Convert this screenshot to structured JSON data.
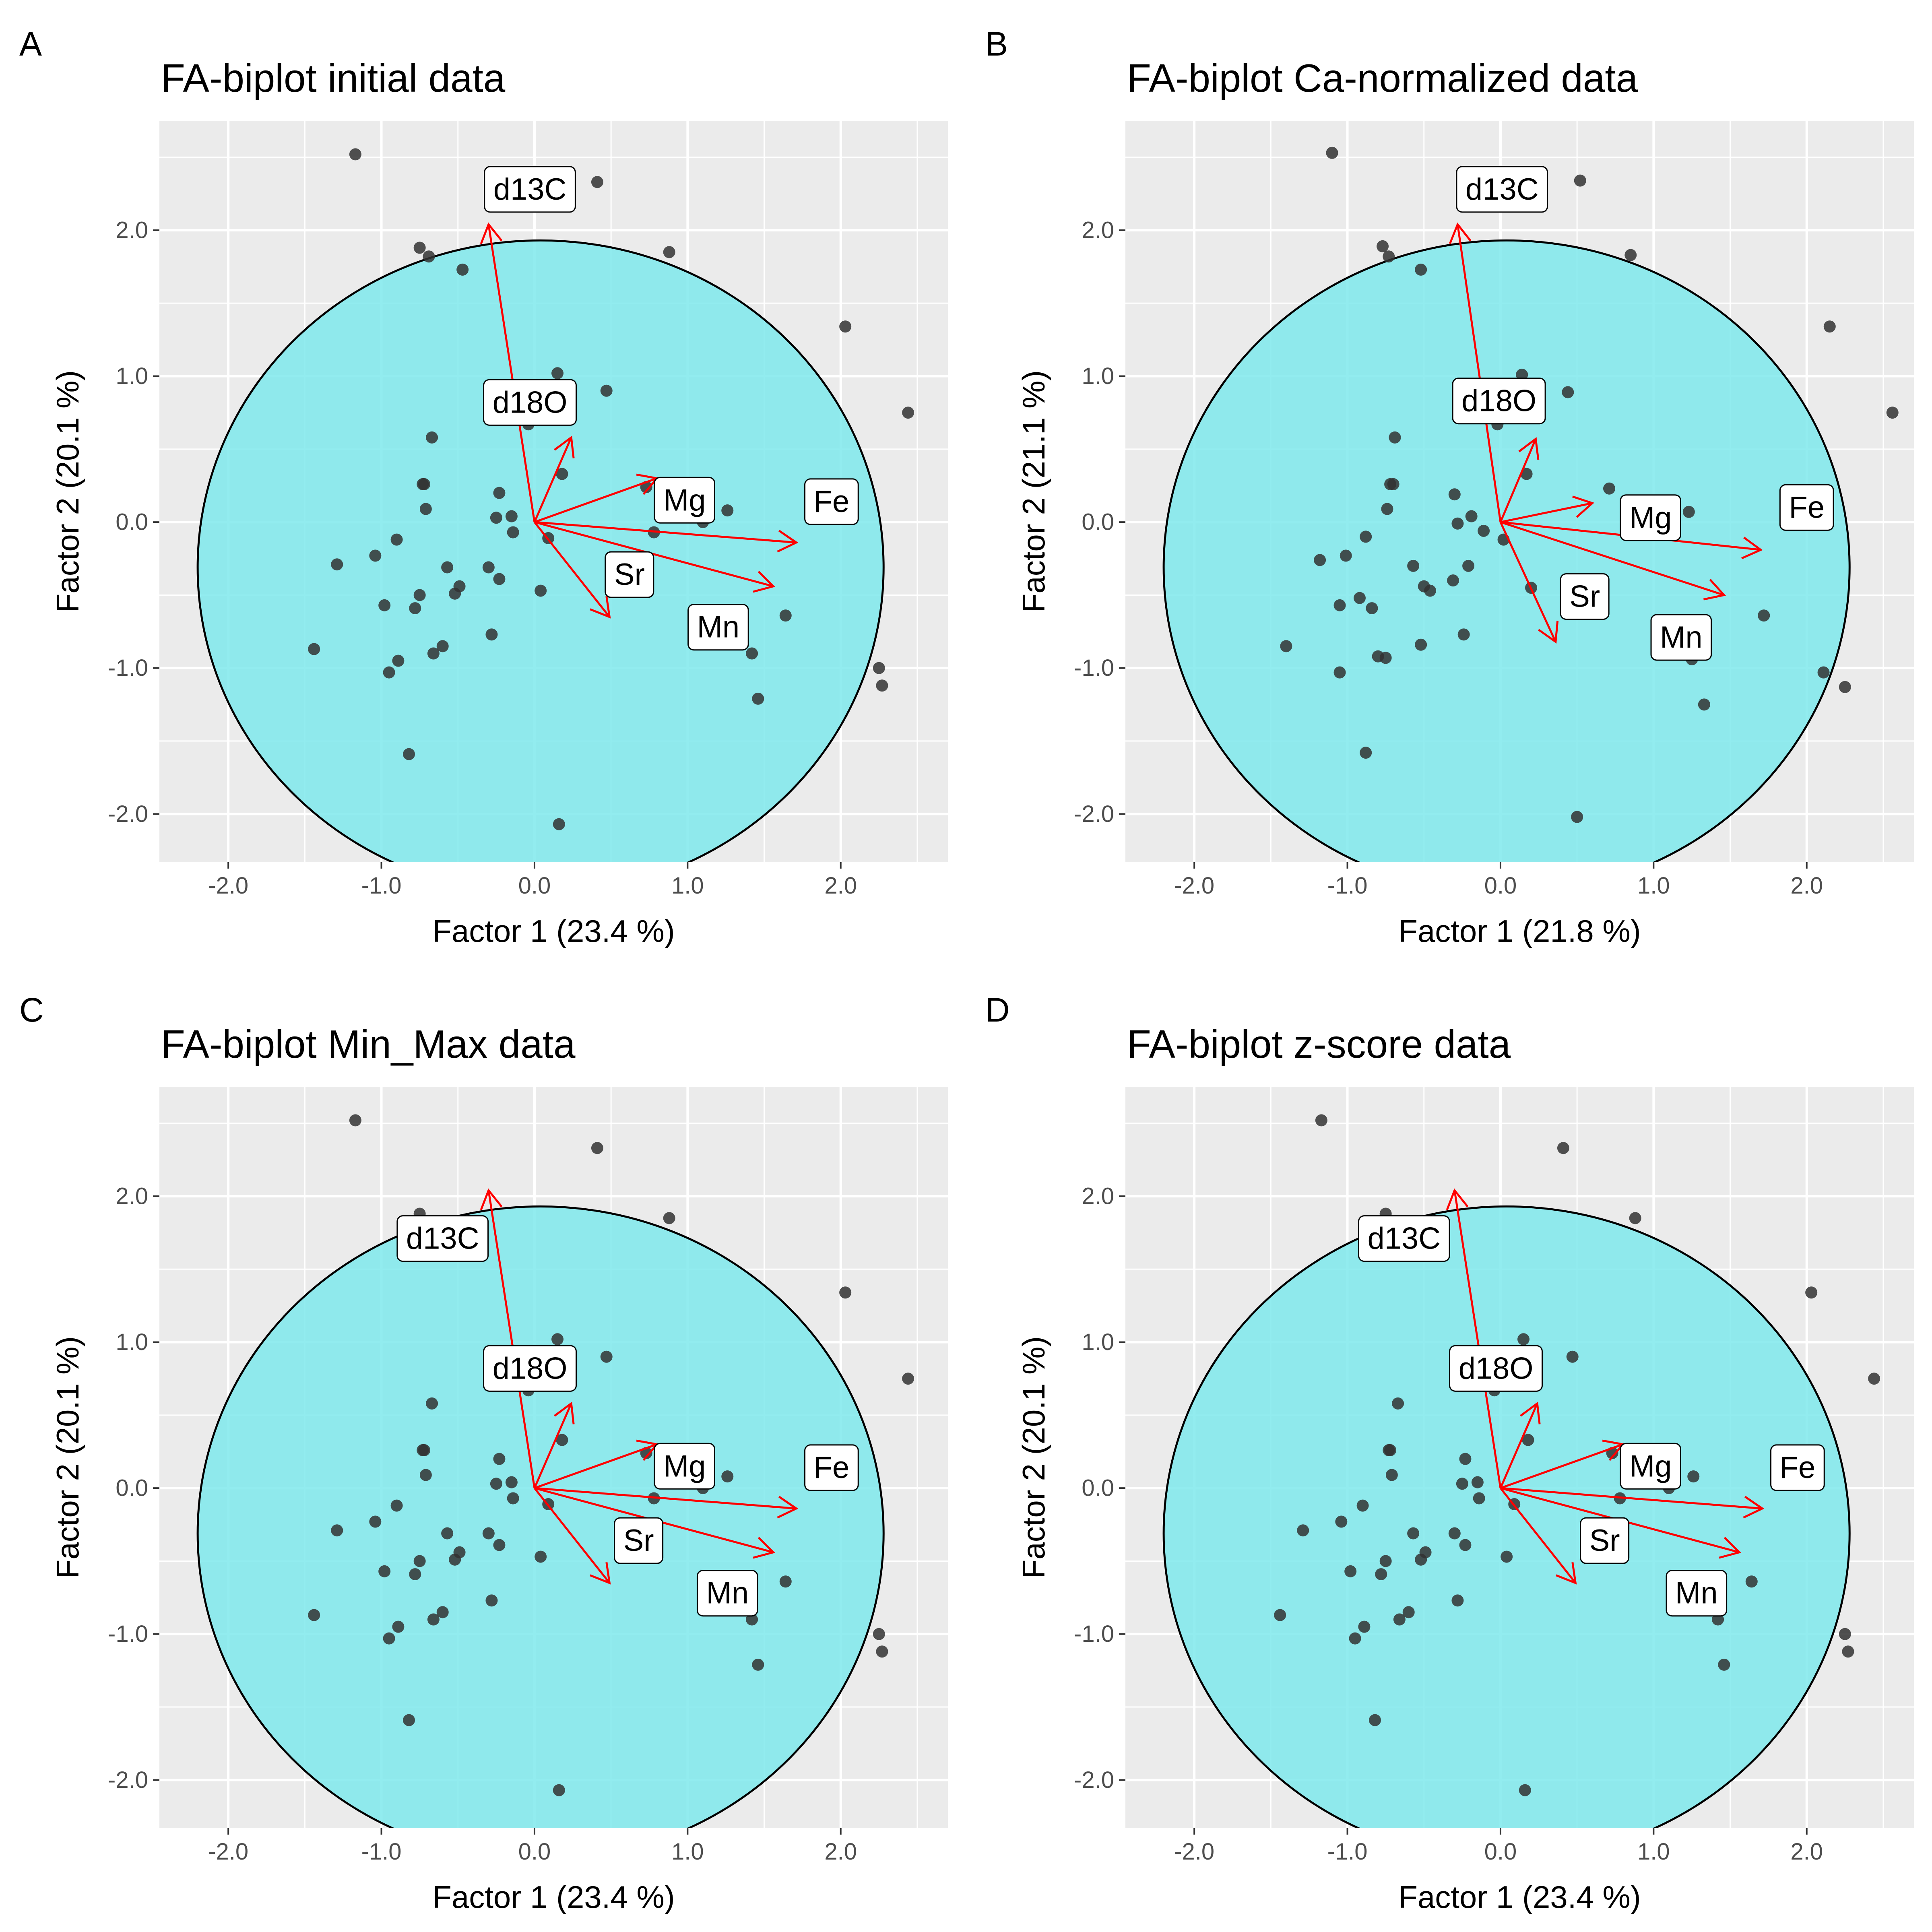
{
  "chart_data": [
    {
      "panel": "A",
      "type": "scatter",
      "title": "FA-biplot initial data",
      "xlabel": "Factor 1 (23.4 %)",
      "ylabel": "Factor 2 (20.1 %)",
      "xlim": [
        -2.45,
        2.7
      ],
      "ylim": [
        -2.33,
        2.75
      ],
      "xticks": [
        "-2.0",
        "-1.0",
        "0.0",
        "1.0",
        "2.0"
      ],
      "yticks": [
        "-2.0",
        "-1.0",
        "0.0",
        "1.0",
        "2.0"
      ],
      "grid": true,
      "colors": {
        "panel_bg": "#ebebeb",
        "ellipse_fill": "#7fe9ec",
        "ellipse_stroke": "#000000",
        "arrow": "#ff0000",
        "point": "#333333"
      },
      "ellipse": {
        "cx": 0.04,
        "cy": -0.31,
        "rx": 2.24,
        "ry": 2.24
      },
      "points": [
        [
          -1.17,
          2.52
        ],
        [
          0.41,
          2.33
        ],
        [
          -0.75,
          1.88
        ],
        [
          -0.69,
          1.82
        ],
        [
          -0.47,
          1.73
        ],
        [
          0.88,
          1.85
        ],
        [
          2.03,
          1.34
        ],
        [
          2.44,
          0.75
        ],
        [
          0.15,
          1.02
        ],
        [
          0.47,
          0.9
        ],
        [
          -0.04,
          0.67
        ],
        [
          -0.67,
          0.58
        ],
        [
          0.18,
          0.33
        ],
        [
          -0.73,
          0.26
        ],
        [
          -0.72,
          0.26
        ],
        [
          -0.23,
          0.2
        ],
        [
          0.73,
          0.24
        ],
        [
          1.26,
          0.08
        ],
        [
          1.1,
          0.0
        ],
        [
          -0.71,
          0.09
        ],
        [
          -0.25,
          0.03
        ],
        [
          -0.15,
          0.04
        ],
        [
          -0.14,
          -0.07
        ],
        [
          0.78,
          -0.07
        ],
        [
          0.09,
          -0.11
        ],
        [
          -0.9,
          -0.12
        ],
        [
          -1.04,
          -0.23
        ],
        [
          -1.29,
          -0.29
        ],
        [
          -0.57,
          -0.31
        ],
        [
          -0.3,
          -0.31
        ],
        [
          -0.23,
          -0.39
        ],
        [
          -0.49,
          -0.44
        ],
        [
          -0.52,
          -0.49
        ],
        [
          -0.75,
          -0.5
        ],
        [
          -0.98,
          -0.57
        ],
        [
          -0.78,
          -0.59
        ],
        [
          0.04,
          -0.47
        ],
        [
          -0.28,
          -0.77
        ],
        [
          -0.6,
          -0.85
        ],
        [
          -0.66,
          -0.9
        ],
        [
          -0.89,
          -0.95
        ],
        [
          -1.44,
          -0.87
        ],
        [
          -0.95,
          -1.03
        ],
        [
          1.42,
          -0.9
        ],
        [
          1.64,
          -0.64
        ],
        [
          2.25,
          -1.0
        ],
        [
          2.27,
          -1.12
        ],
        [
          1.46,
          -1.21
        ],
        [
          -0.82,
          -1.59
        ],
        [
          0.16,
          -2.07
        ]
      ],
      "arrows": [
        {
          "name": "d13C",
          "x": -0.3,
          "y": 2.04
        },
        {
          "name": "d18O",
          "x": 0.24,
          "y": 0.58
        },
        {
          "name": "Mg",
          "x": 0.8,
          "y": 0.3
        },
        {
          "name": "Fe",
          "x": 1.71,
          "y": -0.14
        },
        {
          "name": "Sr",
          "x": 0.49,
          "y": -0.65
        },
        {
          "name": "Mn",
          "x": 1.56,
          "y": -0.44
        }
      ],
      "labels": [
        {
          "name": "d13C",
          "x": -0.03,
          "y": 2.28
        },
        {
          "name": "d18O",
          "x": -0.03,
          "y": 0.82
        },
        {
          "name": "Mg",
          "x": 0.98,
          "y": 0.15
        },
        {
          "name": "Fe",
          "x": 1.94,
          "y": 0.14
        },
        {
          "name": "Sr",
          "x": 0.62,
          "y": -0.36
        },
        {
          "name": "Mn",
          "x": 1.2,
          "y": -0.72
        }
      ]
    },
    {
      "panel": "B",
      "type": "scatter",
      "title": "FA-biplot Ca-normalized data",
      "xlabel": "Factor 1 (21.8 %)",
      "ylabel": "Factor 2 (21.1 %)",
      "xlim": [
        -2.45,
        2.7
      ],
      "ylim": [
        -2.33,
        2.75
      ],
      "xticks": [
        "-2.0",
        "-1.0",
        "0.0",
        "1.0",
        "2.0"
      ],
      "yticks": [
        "-2.0",
        "-1.0",
        "0.0",
        "1.0",
        "2.0"
      ],
      "grid": true,
      "colors": {
        "panel_bg": "#ebebeb",
        "ellipse_fill": "#7fe9ec",
        "ellipse_stroke": "#000000",
        "arrow": "#ff0000",
        "point": "#333333"
      },
      "ellipse": {
        "cx": 0.04,
        "cy": -0.31,
        "rx": 2.24,
        "ry": 2.24
      },
      "points": [
        [
          -1.1,
          2.53
        ],
        [
          0.52,
          2.34
        ],
        [
          -0.77,
          1.89
        ],
        [
          -0.73,
          1.82
        ],
        [
          -0.52,
          1.73
        ],
        [
          0.85,
          1.83
        ],
        [
          2.15,
          1.34
        ],
        [
          2.56,
          0.75
        ],
        [
          0.14,
          1.01
        ],
        [
          0.44,
          0.89
        ],
        [
          -0.02,
          0.67
        ],
        [
          -0.69,
          0.58
        ],
        [
          0.17,
          0.33
        ],
        [
          -0.72,
          0.26
        ],
        [
          -0.7,
          0.26
        ],
        [
          -0.3,
          0.19
        ],
        [
          0.71,
          0.23
        ],
        [
          1.23,
          0.07
        ],
        [
          1.09,
          0.0
        ],
        [
          -0.74,
          0.09
        ],
        [
          -0.19,
          0.04
        ],
        [
          -0.28,
          -0.01
        ],
        [
          -0.11,
          -0.06
        ],
        [
          0.82,
          -0.06
        ],
        [
          0.02,
          -0.12
        ],
        [
          -0.88,
          -0.1
        ],
        [
          -1.01,
          -0.23
        ],
        [
          -1.18,
          -0.26
        ],
        [
          -0.57,
          -0.3
        ],
        [
          -0.21,
          -0.3
        ],
        [
          -0.31,
          -0.4
        ],
        [
          -0.5,
          -0.44
        ],
        [
          -0.46,
          -0.47
        ],
        [
          -0.92,
          -0.52
        ],
        [
          -1.05,
          -0.57
        ],
        [
          -0.84,
          -0.59
        ],
        [
          0.2,
          -0.45
        ],
        [
          -0.24,
          -0.77
        ],
        [
          -0.52,
          -0.84
        ],
        [
          -0.75,
          -0.93
        ],
        [
          -0.8,
          -0.92
        ],
        [
          -1.4,
          -0.85
        ],
        [
          -1.05,
          -1.03
        ],
        [
          1.25,
          -0.94
        ],
        [
          1.72,
          -0.64
        ],
        [
          2.11,
          -1.03
        ],
        [
          2.25,
          -1.13
        ],
        [
          1.33,
          -1.25
        ],
        [
          -0.88,
          -1.58
        ],
        [
          0.5,
          -2.02
        ]
      ],
      "arrows": [
        {
          "name": "d13C",
          "x": -0.28,
          "y": 2.04
        },
        {
          "name": "d18O",
          "x": 0.23,
          "y": 0.57
        },
        {
          "name": "Mg",
          "x": 0.6,
          "y": 0.13
        },
        {
          "name": "Fe",
          "x": 1.7,
          "y": -0.19
        },
        {
          "name": "Sr",
          "x": 0.36,
          "y": -0.82
        },
        {
          "name": "Mn",
          "x": 1.46,
          "y": -0.5
        }
      ],
      "labels": [
        {
          "name": "d13C",
          "x": 0.01,
          "y": 2.28
        },
        {
          "name": "d18O",
          "x": -0.01,
          "y": 0.83
        },
        {
          "name": "Mg",
          "x": 0.98,
          "y": 0.03
        },
        {
          "name": "Fe",
          "x": 2.0,
          "y": 0.1
        },
        {
          "name": "Sr",
          "x": 0.55,
          "y": -0.51
        },
        {
          "name": "Mn",
          "x": 1.18,
          "y": -0.79
        }
      ]
    },
    {
      "panel": "C",
      "type": "scatter",
      "title": "FA-biplot Min_Max data",
      "xlabel": "Factor 1 (23.4 %)",
      "ylabel": "Factor 2 (20.1 %)",
      "xlim": [
        -2.45,
        2.7
      ],
      "ylim": [
        -2.33,
        2.75
      ],
      "xticks": [
        "-2.0",
        "-1.0",
        "0.0",
        "1.0",
        "2.0"
      ],
      "yticks": [
        "-2.0",
        "-1.0",
        "0.0",
        "1.0",
        "2.0"
      ],
      "grid": true,
      "colors": {
        "panel_bg": "#ebebeb",
        "ellipse_fill": "#7fe9ec",
        "ellipse_stroke": "#000000",
        "arrow": "#ff0000",
        "point": "#333333"
      },
      "ellipse": {
        "cx": 0.04,
        "cy": -0.31,
        "rx": 2.24,
        "ry": 2.24
      },
      "points": [
        [
          -1.17,
          2.52
        ],
        [
          0.41,
          2.33
        ],
        [
          -0.75,
          1.88
        ],
        [
          -0.69,
          1.82
        ],
        [
          -0.47,
          1.73
        ],
        [
          0.88,
          1.85
        ],
        [
          2.03,
          1.34
        ],
        [
          2.44,
          0.75
        ],
        [
          0.15,
          1.02
        ],
        [
          0.47,
          0.9
        ],
        [
          -0.04,
          0.67
        ],
        [
          -0.67,
          0.58
        ],
        [
          0.18,
          0.33
        ],
        [
          -0.73,
          0.26
        ],
        [
          -0.72,
          0.26
        ],
        [
          -0.23,
          0.2
        ],
        [
          0.73,
          0.24
        ],
        [
          1.26,
          0.08
        ],
        [
          1.1,
          0.0
        ],
        [
          -0.71,
          0.09
        ],
        [
          -0.25,
          0.03
        ],
        [
          -0.15,
          0.04
        ],
        [
          -0.14,
          -0.07
        ],
        [
          0.78,
          -0.07
        ],
        [
          0.09,
          -0.11
        ],
        [
          -0.9,
          -0.12
        ],
        [
          -1.04,
          -0.23
        ],
        [
          -1.29,
          -0.29
        ],
        [
          -0.57,
          -0.31
        ],
        [
          -0.3,
          -0.31
        ],
        [
          -0.23,
          -0.39
        ],
        [
          -0.49,
          -0.44
        ],
        [
          -0.52,
          -0.49
        ],
        [
          -0.75,
          -0.5
        ],
        [
          -0.98,
          -0.57
        ],
        [
          -0.78,
          -0.59
        ],
        [
          0.04,
          -0.47
        ],
        [
          -0.28,
          -0.77
        ],
        [
          -0.6,
          -0.85
        ],
        [
          -0.66,
          -0.9
        ],
        [
          -0.89,
          -0.95
        ],
        [
          -1.44,
          -0.87
        ],
        [
          -0.95,
          -1.03
        ],
        [
          1.42,
          -0.9
        ],
        [
          1.64,
          -0.64
        ],
        [
          2.25,
          -1.0
        ],
        [
          2.27,
          -1.12
        ],
        [
          1.46,
          -1.21
        ],
        [
          -0.82,
          -1.59
        ],
        [
          0.16,
          -2.07
        ]
      ],
      "arrows": [
        {
          "name": "d13C",
          "x": -0.3,
          "y": 2.04
        },
        {
          "name": "d18O",
          "x": 0.24,
          "y": 0.58
        },
        {
          "name": "Mg",
          "x": 0.8,
          "y": 0.3
        },
        {
          "name": "Fe",
          "x": 1.71,
          "y": -0.14
        },
        {
          "name": "Sr",
          "x": 0.49,
          "y": -0.65
        },
        {
          "name": "Mn",
          "x": 1.56,
          "y": -0.44
        }
      ],
      "labels": [
        {
          "name": "d13C",
          "x": -0.6,
          "y": 1.71
        },
        {
          "name": "d18O",
          "x": -0.03,
          "y": 0.82
        },
        {
          "name": "Mg",
          "x": 0.98,
          "y": 0.15
        },
        {
          "name": "Fe",
          "x": 1.94,
          "y": 0.14
        },
        {
          "name": "Sr",
          "x": 0.68,
          "y": -0.36
        },
        {
          "name": "Mn",
          "x": 1.26,
          "y": -0.72
        }
      ]
    },
    {
      "panel": "D",
      "type": "scatter",
      "title": "FA-biplot z-score data",
      "xlabel": "Factor 1 (23.4 %)",
      "ylabel": "Factor 2 (20.1 %)",
      "xlim": [
        -2.45,
        2.7
      ],
      "ylim": [
        -2.33,
        2.75
      ],
      "xticks": [
        "-2.0",
        "-1.0",
        "0.0",
        "1.0",
        "2.0"
      ],
      "yticks": [
        "-2.0",
        "-1.0",
        "0.0",
        "1.0",
        "2.0"
      ],
      "grid": true,
      "colors": {
        "panel_bg": "#ebebeb",
        "ellipse_fill": "#7fe9ec",
        "ellipse_stroke": "#000000",
        "arrow": "#ff0000",
        "point": "#333333"
      },
      "ellipse": {
        "cx": 0.04,
        "cy": -0.31,
        "rx": 2.24,
        "ry": 2.24
      },
      "points": [
        [
          -1.17,
          2.52
        ],
        [
          0.41,
          2.33
        ],
        [
          -0.75,
          1.88
        ],
        [
          -0.69,
          1.82
        ],
        [
          -0.47,
          1.73
        ],
        [
          0.88,
          1.85
        ],
        [
          2.03,
          1.34
        ],
        [
          2.44,
          0.75
        ],
        [
          0.15,
          1.02
        ],
        [
          0.47,
          0.9
        ],
        [
          -0.04,
          0.67
        ],
        [
          -0.67,
          0.58
        ],
        [
          0.18,
          0.33
        ],
        [
          -0.73,
          0.26
        ],
        [
          -0.72,
          0.26
        ],
        [
          -0.23,
          0.2
        ],
        [
          0.73,
          0.24
        ],
        [
          1.26,
          0.08
        ],
        [
          1.1,
          0.0
        ],
        [
          -0.71,
          0.09
        ],
        [
          -0.25,
          0.03
        ],
        [
          -0.15,
          0.04
        ],
        [
          -0.14,
          -0.07
        ],
        [
          0.78,
          -0.07
        ],
        [
          0.09,
          -0.11
        ],
        [
          -0.9,
          -0.12
        ],
        [
          -1.04,
          -0.23
        ],
        [
          -1.29,
          -0.29
        ],
        [
          -0.57,
          -0.31
        ],
        [
          -0.3,
          -0.31
        ],
        [
          -0.23,
          -0.39
        ],
        [
          -0.49,
          -0.44
        ],
        [
          -0.52,
          -0.49
        ],
        [
          -0.75,
          -0.5
        ],
        [
          -0.98,
          -0.57
        ],
        [
          -0.78,
          -0.59
        ],
        [
          0.04,
          -0.47
        ],
        [
          -0.28,
          -0.77
        ],
        [
          -0.6,
          -0.85
        ],
        [
          -0.66,
          -0.9
        ],
        [
          -0.89,
          -0.95
        ],
        [
          -1.44,
          -0.87
        ],
        [
          -0.95,
          -1.03
        ],
        [
          1.42,
          -0.9
        ],
        [
          1.64,
          -0.64
        ],
        [
          2.25,
          -1.0
        ],
        [
          2.27,
          -1.12
        ],
        [
          1.46,
          -1.21
        ],
        [
          -0.82,
          -1.59
        ],
        [
          0.16,
          -2.07
        ]
      ],
      "arrows": [
        {
          "name": "d13C",
          "x": -0.3,
          "y": 2.04
        },
        {
          "name": "d18O",
          "x": 0.24,
          "y": 0.58
        },
        {
          "name": "Mg",
          "x": 0.8,
          "y": 0.3
        },
        {
          "name": "Fe",
          "x": 1.71,
          "y": -0.14
        },
        {
          "name": "Sr",
          "x": 0.49,
          "y": -0.65
        },
        {
          "name": "Mn",
          "x": 1.56,
          "y": -0.44
        }
      ],
      "labels": [
        {
          "name": "d13C",
          "x": -0.63,
          "y": 1.71
        },
        {
          "name": "d18O",
          "x": -0.03,
          "y": 0.82
        },
        {
          "name": "Mg",
          "x": 0.98,
          "y": 0.15
        },
        {
          "name": "Fe",
          "x": 1.94,
          "y": 0.14
        },
        {
          "name": "Sr",
          "x": 0.68,
          "y": -0.36
        },
        {
          "name": "Mn",
          "x": 1.28,
          "y": -0.72
        }
      ]
    }
  ]
}
